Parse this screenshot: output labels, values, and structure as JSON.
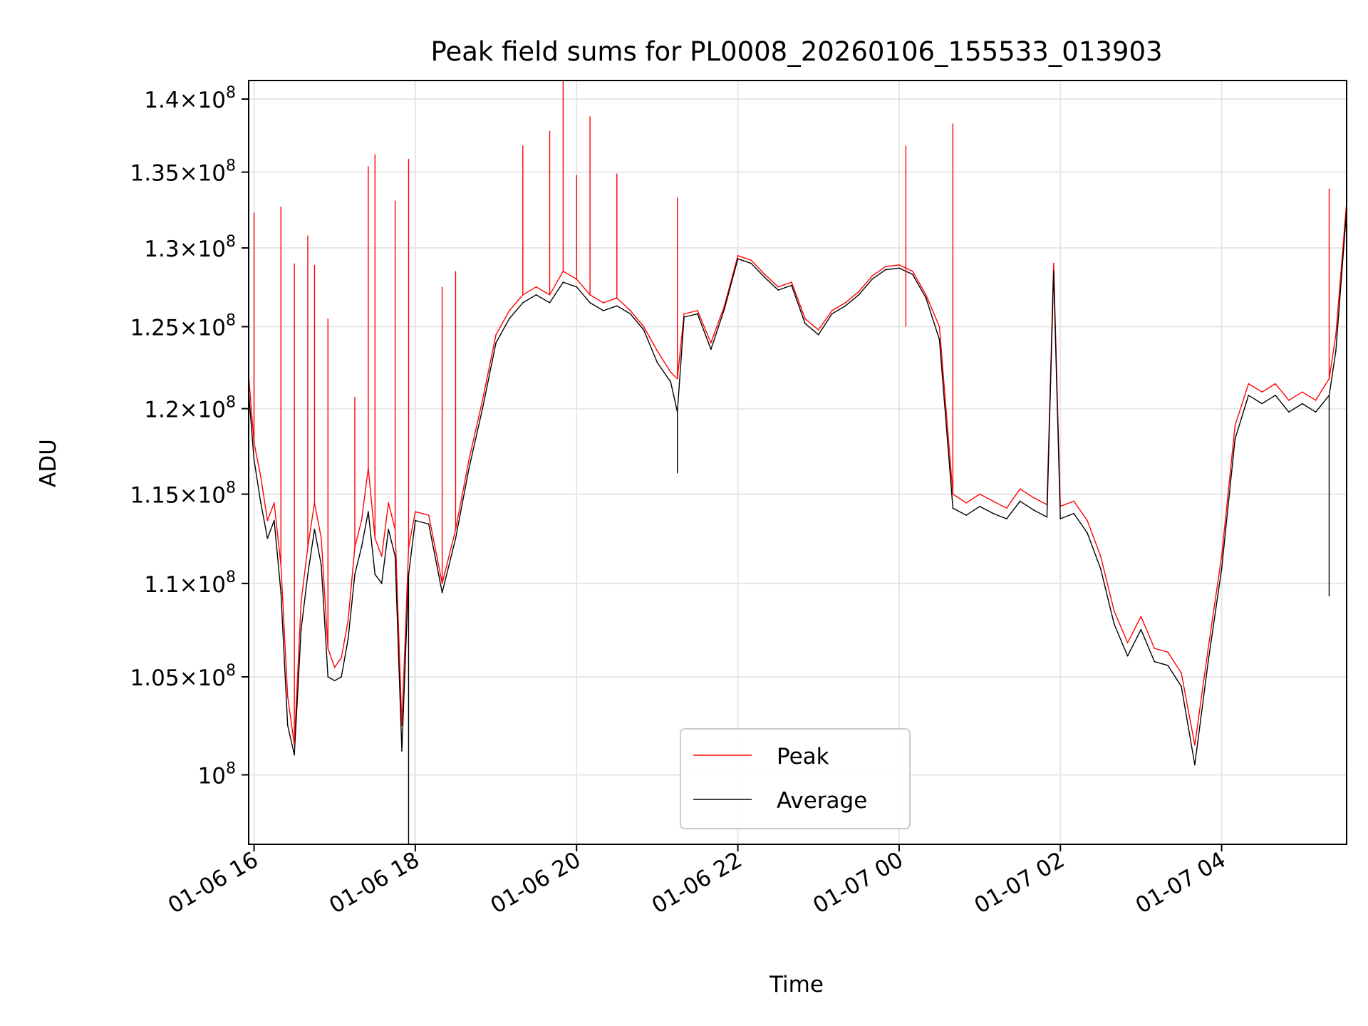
{
  "chart_data": {
    "type": "line",
    "title": "Peak field sums for PL0008_20260106_155533_013903",
    "xlabel": "Time",
    "ylabel": "ADU",
    "y_scale": "log",
    "grid": true,
    "legend_position": "lower-center",
    "xlim": [
      "2026-01-06T15:56",
      "2026-01-07T05:33"
    ],
    "ylim": [
      96600000,
      141300000
    ],
    "x_ticks": [
      {
        "value": "2026-01-06T16:00",
        "label": "01-06 16"
      },
      {
        "value": "2026-01-06T18:00",
        "label": "01-06 18"
      },
      {
        "value": "2026-01-06T20:00",
        "label": "01-06 20"
      },
      {
        "value": "2026-01-06T22:00",
        "label": "01-06 22"
      },
      {
        "value": "2026-01-07T00:00",
        "label": "01-07 00"
      },
      {
        "value": "2026-01-07T02:00",
        "label": "01-07 02"
      },
      {
        "value": "2026-01-07T04:00",
        "label": "01-07 04"
      }
    ],
    "y_ticks": [
      {
        "value": 100000000,
        "mantissa": "",
        "exp": "8"
      },
      {
        "value": 105000000,
        "mantissa": "1.05",
        "exp": "8"
      },
      {
        "value": 110000000,
        "mantissa": "1.1",
        "exp": "8"
      },
      {
        "value": 115000000,
        "mantissa": "1.15",
        "exp": "8"
      },
      {
        "value": 120000000,
        "mantissa": "1.2",
        "exp": "8"
      },
      {
        "value": 125000000,
        "mantissa": "1.25",
        "exp": "8"
      },
      {
        "value": 130000000,
        "mantissa": "1.3",
        "exp": "8"
      },
      {
        "value": 135000000,
        "mantissa": "1.35",
        "exp": "8"
      },
      {
        "value": 140000000,
        "mantissa": "1.4",
        "exp": "8"
      }
    ],
    "series": [
      {
        "name": "Peak",
        "color": "#ff0000",
        "x": [
          "2026-01-06T15:56",
          "2026-01-06T16:00",
          "2026-01-06T16:05",
          "2026-01-06T16:10",
          "2026-01-06T16:15",
          "2026-01-06T16:20",
          "2026-01-06T16:25",
          "2026-01-06T16:30",
          "2026-01-06T16:35",
          "2026-01-06T16:40",
          "2026-01-06T16:45",
          "2026-01-06T16:50",
          "2026-01-06T16:55",
          "2026-01-06T17:00",
          "2026-01-06T17:05",
          "2026-01-06T17:10",
          "2026-01-06T17:15",
          "2026-01-06T17:20",
          "2026-01-06T17:25",
          "2026-01-06T17:30",
          "2026-01-06T17:35",
          "2026-01-06T17:40",
          "2026-01-06T17:45",
          "2026-01-06T17:50",
          "2026-01-06T17:55",
          "2026-01-06T18:00",
          "2026-01-06T18:10",
          "2026-01-06T18:20",
          "2026-01-06T18:30",
          "2026-01-06T18:40",
          "2026-01-06T18:50",
          "2026-01-06T19:00",
          "2026-01-06T19:10",
          "2026-01-06T19:20",
          "2026-01-06T19:30",
          "2026-01-06T19:40",
          "2026-01-06T19:50",
          "2026-01-06T20:00",
          "2026-01-06T20:10",
          "2026-01-06T20:20",
          "2026-01-06T20:30",
          "2026-01-06T20:40",
          "2026-01-06T20:50",
          "2026-01-06T21:00",
          "2026-01-06T21:10",
          "2026-01-06T21:15",
          "2026-01-06T21:20",
          "2026-01-06T21:30",
          "2026-01-06T21:40",
          "2026-01-06T21:50",
          "2026-01-06T22:00",
          "2026-01-06T22:10",
          "2026-01-06T22:20",
          "2026-01-06T22:30",
          "2026-01-06T22:40",
          "2026-01-06T22:50",
          "2026-01-06T23:00",
          "2026-01-06T23:10",
          "2026-01-06T23:20",
          "2026-01-06T23:30",
          "2026-01-06T23:40",
          "2026-01-06T23:50",
          "2026-01-07T00:00",
          "2026-01-07T00:10",
          "2026-01-07T00:20",
          "2026-01-07T00:30",
          "2026-01-07T00:40",
          "2026-01-07T00:50",
          "2026-01-07T01:00",
          "2026-01-07T01:10",
          "2026-01-07T01:20",
          "2026-01-07T01:30",
          "2026-01-07T01:40",
          "2026-01-07T01:50",
          "2026-01-07T01:55",
          "2026-01-07T02:00",
          "2026-01-07T02:10",
          "2026-01-07T02:20",
          "2026-01-07T02:30",
          "2026-01-07T02:40",
          "2026-01-07T02:50",
          "2026-01-07T03:00",
          "2026-01-07T03:10",
          "2026-01-07T03:20",
          "2026-01-07T03:30",
          "2026-01-07T03:40",
          "2026-01-07T03:50",
          "2026-01-07T04:00",
          "2026-01-07T04:10",
          "2026-01-07T04:20",
          "2026-01-07T04:30",
          "2026-01-07T04:40",
          "2026-01-07T04:50",
          "2026-01-07T05:00",
          "2026-01-07T05:10",
          "2026-01-07T05:20",
          "2026-01-07T05:25",
          "2026-01-07T05:33"
        ],
        "values": [
          122000000,
          118000000,
          116000000,
          113500000,
          114500000,
          111000000,
          104000000,
          101500000,
          109000000,
          112000000,
          114500000,
          112500000,
          106500000,
          105500000,
          106000000,
          108000000,
          112000000,
          113500000,
          116500000,
          112500000,
          111500000,
          114500000,
          113000000,
          102500000,
          112000000,
          114000000,
          113800000,
          110000000,
          113000000,
          117000000,
          120500000,
          124500000,
          126000000,
          127000000,
          127500000,
          127000000,
          128500000,
          128000000,
          127000000,
          126500000,
          126800000,
          126000000,
          125000000,
          123500000,
          122200000,
          121800000,
          125800000,
          126000000,
          124000000,
          126300000,
          129500000,
          129200000,
          128300000,
          127500000,
          127800000,
          125500000,
          124800000,
          126000000,
          126500000,
          127200000,
          128200000,
          128800000,
          128900000,
          128500000,
          127000000,
          125000000,
          115000000,
          114500000,
          115000000,
          114600000,
          114200000,
          115300000,
          114800000,
          114400000,
          129000000,
          114300000,
          114600000,
          113500000,
          111500000,
          108500000,
          106800000,
          108200000,
          106500000,
          106300000,
          105200000,
          101500000,
          106500000,
          111500000,
          119000000,
          121500000,
          121000000,
          121500000,
          120500000,
          121000000,
          120500000,
          121800000,
          124500000,
          133000000
        ]
      },
      {
        "name": "Average",
        "color": "#000000",
        "x": [
          "2026-01-06T15:56",
          "2026-01-06T16:00",
          "2026-01-06T16:05",
          "2026-01-06T16:10",
          "2026-01-06T16:15",
          "2026-01-06T16:20",
          "2026-01-06T16:25",
          "2026-01-06T16:30",
          "2026-01-06T16:35",
          "2026-01-06T16:40",
          "2026-01-06T16:45",
          "2026-01-06T16:50",
          "2026-01-06T16:55",
          "2026-01-06T17:00",
          "2026-01-06T17:05",
          "2026-01-06T17:10",
          "2026-01-06T17:15",
          "2026-01-06T17:20",
          "2026-01-06T17:25",
          "2026-01-06T17:30",
          "2026-01-06T17:35",
          "2026-01-06T17:40",
          "2026-01-06T17:45",
          "2026-01-06T17:50",
          "2026-01-06T17:55",
          "2026-01-06T18:00",
          "2026-01-06T18:10",
          "2026-01-06T18:20",
          "2026-01-06T18:30",
          "2026-01-06T18:40",
          "2026-01-06T18:50",
          "2026-01-06T19:00",
          "2026-01-06T19:10",
          "2026-01-06T19:20",
          "2026-01-06T19:30",
          "2026-01-06T19:40",
          "2026-01-06T19:50",
          "2026-01-06T20:00",
          "2026-01-06T20:10",
          "2026-01-06T20:20",
          "2026-01-06T20:30",
          "2026-01-06T20:40",
          "2026-01-06T20:50",
          "2026-01-06T21:00",
          "2026-01-06T21:10",
          "2026-01-06T21:15",
          "2026-01-06T21:20",
          "2026-01-06T21:30",
          "2026-01-06T21:40",
          "2026-01-06T21:50",
          "2026-01-06T22:00",
          "2026-01-06T22:10",
          "2026-01-06T22:20",
          "2026-01-06T22:30",
          "2026-01-06T22:40",
          "2026-01-06T22:50",
          "2026-01-06T23:00",
          "2026-01-06T23:10",
          "2026-01-06T23:20",
          "2026-01-06T23:30",
          "2026-01-06T23:40",
          "2026-01-06T23:50",
          "2026-01-07T00:00",
          "2026-01-07T00:10",
          "2026-01-07T00:20",
          "2026-01-07T00:30",
          "2026-01-07T00:40",
          "2026-01-07T00:50",
          "2026-01-07T01:00",
          "2026-01-07T01:10",
          "2026-01-07T01:20",
          "2026-01-07T01:30",
          "2026-01-07T01:40",
          "2026-01-07T01:50",
          "2026-01-07T01:55",
          "2026-01-07T02:00",
          "2026-01-07T02:10",
          "2026-01-07T02:20",
          "2026-01-07T02:30",
          "2026-01-07T02:40",
          "2026-01-07T02:50",
          "2026-01-07T03:00",
          "2026-01-07T03:10",
          "2026-01-07T03:20",
          "2026-01-07T03:30",
          "2026-01-07T03:40",
          "2026-01-07T03:50",
          "2026-01-07T04:00",
          "2026-01-07T04:10",
          "2026-01-07T04:20",
          "2026-01-07T04:30",
          "2026-01-07T04:40",
          "2026-01-07T04:50",
          "2026-01-07T05:00",
          "2026-01-07T05:10",
          "2026-01-07T05:20",
          "2026-01-07T05:25",
          "2026-01-07T05:33"
        ],
        "values": [
          121000000,
          117000000,
          114500000,
          112500000,
          113500000,
          109500000,
          102500000,
          101000000,
          107500000,
          110500000,
          113000000,
          111000000,
          105000000,
          104800000,
          105000000,
          107000000,
          110500000,
          112000000,
          114000000,
          110500000,
          110000000,
          113000000,
          111500000,
          101200000,
          110500000,
          113500000,
          113300000,
          109500000,
          112500000,
          116500000,
          120000000,
          124000000,
          125500000,
          126500000,
          127000000,
          126500000,
          127800000,
          127500000,
          126500000,
          126000000,
          126300000,
          125800000,
          124800000,
          122800000,
          121600000,
          119800000,
          125600000,
          125800000,
          123600000,
          126100000,
          129300000,
          129000000,
          128100000,
          127300000,
          127600000,
          125200000,
          124500000,
          125800000,
          126300000,
          127000000,
          128000000,
          128600000,
          128700000,
          128300000,
          126800000,
          124200000,
          114200000,
          113800000,
          114300000,
          113900000,
          113600000,
          114600000,
          114100000,
          113700000,
          128500000,
          113600000,
          113900000,
          112800000,
          110800000,
          107800000,
          106100000,
          107500000,
          105800000,
          105600000,
          104500000,
          100500000,
          105800000,
          110800000,
          118200000,
          120800000,
          120300000,
          120800000,
          119800000,
          120300000,
          119800000,
          120800000,
          123500000,
          132500000
        ]
      }
    ],
    "peak_spikes": [
      {
        "x": "2026-01-06T16:00",
        "value": 132300000
      },
      {
        "x": "2026-01-06T16:20",
        "value": 132700000
      },
      {
        "x": "2026-01-06T16:30",
        "value": 129000000
      },
      {
        "x": "2026-01-06T16:40",
        "value": 130800000
      },
      {
        "x": "2026-01-06T16:45",
        "value": 128900000
      },
      {
        "x": "2026-01-06T16:55",
        "value": 125500000
      },
      {
        "x": "2026-01-06T17:15",
        "value": 120700000
      },
      {
        "x": "2026-01-06T17:25",
        "value": 135400000
      },
      {
        "x": "2026-01-06T17:30",
        "value": 136200000
      },
      {
        "x": "2026-01-06T17:45",
        "value": 133100000
      },
      {
        "x": "2026-01-06T17:55",
        "value": 135900000
      },
      {
        "x": "2026-01-06T18:20",
        "value": 127500000
      },
      {
        "x": "2026-01-06T18:30",
        "value": 128500000
      },
      {
        "x": "2026-01-06T19:20",
        "value": 136800000
      },
      {
        "x": "2026-01-06T19:40",
        "value": 137800000
      },
      {
        "x": "2026-01-06T19:50",
        "value": 141300000
      },
      {
        "x": "2026-01-06T20:00",
        "value": 134800000
      },
      {
        "x": "2026-01-06T20:10",
        "value": 138800000
      },
      {
        "x": "2026-01-06T20:30",
        "value": 134900000
      },
      {
        "x": "2026-01-06T21:15",
        "value": 133300000
      },
      {
        "x": "2026-01-07T00:05",
        "value": 136800000
      },
      {
        "x": "2026-01-07T00:40",
        "value": 138300000
      },
      {
        "x": "2026-01-07T05:20",
        "value": 133900000
      }
    ],
    "average_dips": [
      {
        "x": "2026-01-06T17:55",
        "value": 96600000
      },
      {
        "x": "2026-01-06T21:15",
        "value": 116200000
      },
      {
        "x": "2026-01-07T05:20",
        "value": 109300000
      }
    ]
  }
}
